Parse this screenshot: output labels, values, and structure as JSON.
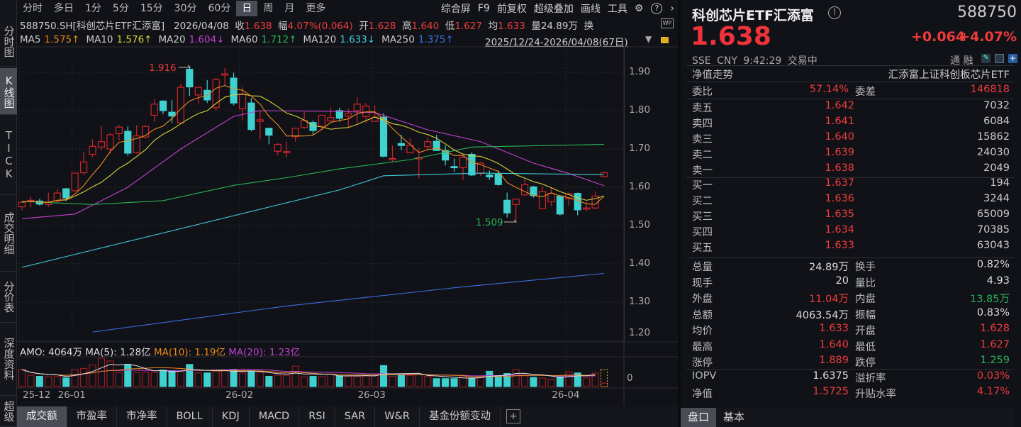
{
  "sidebar": {
    "tabs": [
      "分时图",
      "K线图",
      "TICK",
      "成交明细",
      "分价表",
      "深度资料",
      "超级"
    ],
    "active": 1
  },
  "topbar": {
    "periods": [
      "分时",
      "多日",
      "1分",
      "5分",
      "15分",
      "30分",
      "60分",
      "日",
      "周",
      "月",
      "更多"
    ],
    "active": "日",
    "tools": [
      "综合屏",
      "F9",
      "前复权",
      "超级叠加",
      "画线",
      "工具"
    ],
    "icons": [
      "gear-icon",
      "help-icon",
      "chevron-right-icon"
    ]
  },
  "quote_line": {
    "code": "588750.SH[科创芯片ETF汇添富]",
    "date": "2026/04/08",
    "close_label": "收",
    "close": "1.638",
    "change_label": "幅",
    "change": "4.07%(0.064)",
    "open_label": "开",
    "open": "1.628",
    "high_label": "高",
    "high": "1.640",
    "low_label": "低",
    "low": "1.627",
    "avg_label": "均",
    "avg": "1.633",
    "vol_label": "量",
    "vol": "24.89万",
    "turnover_label": "换"
  },
  "ma_line": {
    "items": [
      {
        "label": "MA5",
        "value": "1.575↑",
        "color": "#e8891c"
      },
      {
        "label": "MA10",
        "value": "1.576↑",
        "color": "#d6d13a"
      },
      {
        "label": "MA20",
        "value": "1.604↓",
        "color": "#c040d0"
      },
      {
        "label": "MA60",
        "value": "1.712↑",
        "color": "#27b455"
      },
      {
        "label": "MA120",
        "value": "1.633↓",
        "color": "#3fc8d8"
      },
      {
        "label": "MA250",
        "value": "1.375↑",
        "color": "#3a6fe0"
      }
    ],
    "range": "2025/12/24-2026/04/08(67日)"
  },
  "chart_data": {
    "type": "candlestick",
    "ylim": [
      1.2,
      1.92
    ],
    "yticks": [
      "1.90",
      "1.80",
      "1.70",
      "1.60",
      "1.50",
      "1.40",
      "1.30",
      "1.20"
    ],
    "xticks": [
      {
        "label": "25-12",
        "index": 0
      },
      {
        "label": "26-01",
        "index": 6
      },
      {
        "label": "26-02",
        "index": 25
      },
      {
        "label": "26-03",
        "index": 40
      },
      {
        "label": "26-04",
        "index": 62
      }
    ],
    "annotations": {
      "high": "1.916",
      "low": "1.509"
    },
    "ohlc": [
      [
        1.549,
        1.564,
        1.54,
        1.561
      ],
      [
        1.564,
        1.575,
        1.547,
        1.566
      ],
      [
        1.564,
        1.57,
        1.552,
        1.556
      ],
      [
        1.555,
        1.586,
        1.549,
        1.561
      ],
      [
        1.564,
        1.595,
        1.558,
        1.585
      ],
      [
        1.596,
        1.598,
        1.564,
        1.572
      ],
      [
        1.591,
        1.638,
        1.589,
        1.637
      ],
      [
        1.638,
        1.691,
        1.632,
        1.666
      ],
      [
        1.686,
        1.725,
        1.678,
        1.707
      ],
      [
        1.705,
        1.761,
        1.697,
        1.719
      ],
      [
        1.7,
        1.742,
        1.688,
        1.737
      ],
      [
        1.74,
        1.762,
        1.722,
        1.757
      ],
      [
        1.746,
        1.759,
        1.682,
        1.689
      ],
      [
        1.69,
        1.762,
        1.688,
        1.734
      ],
      [
        1.731,
        1.762,
        1.728,
        1.759
      ],
      [
        1.788,
        1.83,
        1.771,
        1.817
      ],
      [
        1.825,
        1.827,
        1.791,
        1.8
      ],
      [
        1.796,
        1.828,
        1.768,
        1.786
      ],
      [
        1.768,
        1.87,
        1.767,
        1.861
      ],
      [
        1.908,
        1.916,
        1.839,
        1.862
      ],
      [
        1.841,
        1.864,
        1.817,
        1.861
      ],
      [
        1.853,
        1.88,
        1.82,
        1.828
      ],
      [
        1.808,
        1.885,
        1.8,
        1.881
      ],
      [
        1.893,
        1.911,
        1.867,
        1.896
      ],
      [
        1.885,
        1.899,
        1.814,
        1.82
      ],
      [
        1.805,
        1.861,
        1.774,
        1.842
      ],
      [
        1.82,
        1.833,
        1.746,
        1.751
      ],
      [
        1.772,
        1.799,
        1.725,
        1.776
      ],
      [
        1.754,
        1.754,
        1.712,
        1.736
      ],
      [
        1.694,
        1.715,
        1.683,
        1.712
      ],
      [
        1.691,
        1.719,
        1.678,
        1.693
      ],
      [
        1.732,
        1.754,
        1.719,
        1.754
      ],
      [
        1.756,
        1.8,
        1.753,
        1.774
      ],
      [
        1.769,
        1.774,
        1.737,
        1.748
      ],
      [
        1.759,
        1.788,
        1.756,
        1.788
      ],
      [
        1.773,
        1.808,
        1.771,
        1.782
      ],
      [
        1.8,
        1.808,
        1.771,
        1.78
      ],
      [
        1.786,
        1.805,
        1.756,
        1.793
      ],
      [
        1.8,
        1.835,
        1.768,
        1.817
      ],
      [
        1.785,
        1.82,
        1.768,
        1.812
      ],
      [
        1.772,
        1.814,
        1.771,
        1.783
      ],
      [
        1.783,
        1.794,
        1.678,
        1.681
      ],
      [
        1.672,
        1.709,
        1.666,
        1.675
      ],
      [
        1.714,
        1.737,
        1.697,
        1.709
      ],
      [
        1.69,
        1.728,
        1.688,
        1.71
      ],
      [
        1.674,
        1.703,
        1.623,
        1.677
      ],
      [
        1.706,
        1.73,
        1.697,
        1.719
      ],
      [
        1.72,
        1.737,
        1.695,
        1.696
      ],
      [
        1.696,
        1.709,
        1.657,
        1.671
      ],
      [
        1.654,
        1.675,
        1.64,
        1.651
      ],
      [
        1.651,
        1.682,
        1.619,
        1.678
      ],
      [
        1.686,
        1.691,
        1.629,
        1.632
      ],
      [
        1.636,
        1.666,
        1.629,
        1.663
      ],
      [
        1.632,
        1.644,
        1.619,
        1.627
      ],
      [
        1.634,
        1.644,
        1.604,
        1.607
      ],
      [
        1.566,
        1.586,
        1.521,
        1.533
      ],
      [
        1.555,
        1.569,
        1.509,
        1.569
      ],
      [
        1.58,
        1.62,
        1.578,
        1.607
      ],
      [
        1.601,
        1.604,
        1.573,
        1.578
      ],
      [
        1.544,
        1.604,
        1.543,
        1.589
      ],
      [
        1.562,
        1.601,
        1.551,
        1.584
      ],
      [
        1.577,
        1.58,
        1.527,
        1.53
      ],
      [
        1.57,
        1.586,
        1.552,
        1.583
      ],
      [
        1.584,
        1.586,
        1.527,
        1.541
      ],
      [
        1.543,
        1.561,
        1.538,
        1.546
      ],
      [
        1.546,
        1.589,
        1.543,
        1.577
      ],
      [
        1.628,
        1.64,
        1.627,
        1.638
      ]
    ],
    "ma_lines": [
      {
        "name": "MA20",
        "color": "#c040d0",
        "points": [
          [
            0,
            1.518
          ],
          [
            6,
            1.53
          ],
          [
            12,
            1.6
          ],
          [
            18,
            1.7
          ],
          [
            24,
            1.785
          ],
          [
            27,
            1.8
          ],
          [
            36,
            1.798
          ],
          [
            40,
            1.795
          ],
          [
            46,
            1.75
          ],
          [
            52,
            1.719
          ],
          [
            58,
            1.663
          ],
          [
            62,
            1.636
          ],
          [
            66,
            1.604
          ]
        ]
      },
      {
        "name": "MA60",
        "color": "#27b455",
        "points": [
          [
            0,
            1.563
          ],
          [
            8,
            1.555
          ],
          [
            16,
            1.565
          ],
          [
            24,
            1.605
          ],
          [
            30,
            1.625
          ],
          [
            36,
            1.648
          ],
          [
            44,
            1.672
          ],
          [
            51,
            1.705
          ],
          [
            66,
            1.712
          ]
        ]
      },
      {
        "name": "MA120",
        "color": "#3fc8d8",
        "points": [
          [
            0,
            1.391
          ],
          [
            36,
            1.593
          ],
          [
            41,
            1.63
          ],
          [
            52,
            1.637
          ],
          [
            66,
            1.633
          ]
        ]
      },
      {
        "name": "MA250",
        "color": "#3a6fe0",
        "points": [
          [
            8,
            1.222
          ],
          [
            30,
            1.29
          ],
          [
            50,
            1.34
          ],
          [
            66,
            1.375
          ]
        ]
      }
    ],
    "amount": [
      1.5,
      1.0,
      0.9,
      0.87,
      0.87,
      0.76,
      1.5,
      1.6,
      1.9,
      2.5,
      2.25,
      1.24,
      1.95,
      1.24,
      1.24,
      1.24,
      1.45,
      1.4,
      1.4,
      1.95,
      1.2,
      1.2,
      1.4,
      1.4,
      1.5,
      1.2,
      1.35,
      1.25,
      0.9,
      1.0,
      1.0,
      1.8,
      0.85,
      0.9,
      0.87,
      1.1,
      0.95,
      0.9,
      0.9,
      0.95,
      1.0,
      1.85,
      0.9,
      1.0,
      1.0,
      1.1,
      0.87,
      0.7,
      0.7,
      0.7,
      0.87,
      0.76,
      0.87,
      1.35,
      0.9,
      1.15,
      1.5,
      0.95,
      0.8,
      0.74,
      0.65,
      0.85,
      1.3,
      1.2,
      0.76,
      1.2,
      0.3
    ],
    "amount_axis": "0"
  },
  "amo_line": {
    "amo": "AMO: 4064万",
    "ma5": "MA(5): 1.28亿",
    "ma10": "MA(10): 1.19亿",
    "ma20": "MA(20): 1.23亿"
  },
  "indicator_tabs": [
    "成交额",
    "市盈率",
    "市净率",
    "BOLL",
    "KDJ",
    "MACD",
    "RSI",
    "SAR",
    "W&R",
    "基金份额变动"
  ],
  "right": {
    "name": "科创芯片ETF汇添富",
    "code": "588750",
    "price": "1.638",
    "change": "+0.064",
    "change_pct": "+4.07%",
    "exchange": "SSE",
    "currency": "CNY",
    "time": "9:42:29",
    "status": "交易中",
    "tong": "通",
    "rong": "融",
    "nav_trend": "净值走势",
    "fund_name": "汇添富上证科创板芯片ETF",
    "weibi_label": "委比",
    "weibi": "57.14%",
    "weicha_label": "委差",
    "weicha": "146818",
    "asks": [
      {
        "label": "卖五",
        "price": "1.642",
        "vol": "7032"
      },
      {
        "label": "卖四",
        "price": "1.641",
        "vol": "6084"
      },
      {
        "label": "卖三",
        "price": "1.640",
        "vol": "15862"
      },
      {
        "label": "卖二",
        "price": "1.639",
        "vol": "24030"
      },
      {
        "label": "卖一",
        "price": "1.638",
        "vol": "2049"
      }
    ],
    "bids": [
      {
        "label": "买一",
        "price": "1.637",
        "vol": "194"
      },
      {
        "label": "买二",
        "price": "1.636",
        "vol": "3244"
      },
      {
        "label": "买三",
        "price": "1.635",
        "vol": "65009"
      },
      {
        "label": "买四",
        "price": "1.634",
        "vol": "70385"
      },
      {
        "label": "买五",
        "price": "1.633",
        "vol": "63043"
      }
    ],
    "stats": [
      {
        "l1": "总量",
        "v1": "24.89万",
        "c1": "white",
        "l2": "换手",
        "v2": "0.82%",
        "c2": "white"
      },
      {
        "l1": "现手",
        "v1": "20",
        "c1": "white",
        "l2": "量比",
        "v2": "4.93",
        "c2": "white"
      },
      {
        "l1": "外盘",
        "v1": "11.04万",
        "c1": "red",
        "l2": "内盘",
        "v2": "13.85万",
        "c2": "green"
      },
      {
        "l1": "总额",
        "v1": "4063.54万",
        "c1": "white",
        "l2": "振幅",
        "v2": "0.83%",
        "c2": "white"
      },
      {
        "l1": "均价",
        "v1": "1.633",
        "c1": "red",
        "l2": "开盘",
        "v2": "1.628",
        "c2": "red"
      },
      {
        "l1": "最高",
        "v1": "1.640",
        "c1": "red",
        "l2": "最低",
        "v2": "1.627",
        "c2": "red"
      },
      {
        "l1": "涨停",
        "v1": "1.889",
        "c1": "red",
        "l2": "跌停",
        "v2": "1.259",
        "c2": "green"
      },
      {
        "l1": "IOPV",
        "v1": "1.6375",
        "c1": "white",
        "l2": "溢折率",
        "v2": "0.03%",
        "c2": "red"
      },
      {
        "l1": "净值",
        "v1": "1.5725",
        "c1": "red",
        "l2": "升贴水率",
        "v2": "4.17%",
        "c2": "red"
      }
    ],
    "bottom_tabs": [
      "盘口",
      "基本"
    ]
  },
  "colors": {
    "up": "#d0242a",
    "down": "#3fd0d0",
    "background": "#111217"
  }
}
